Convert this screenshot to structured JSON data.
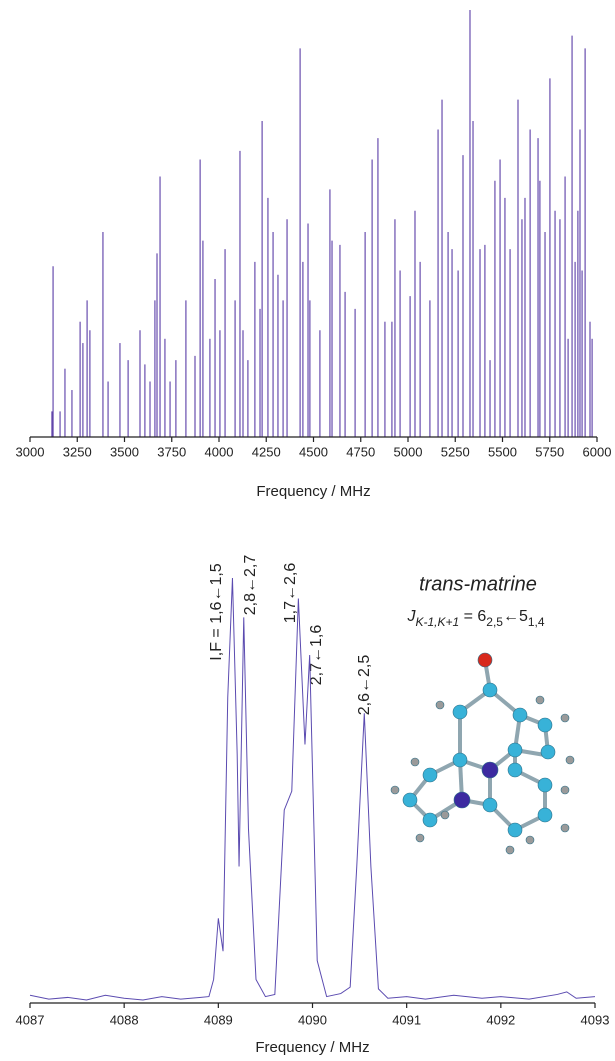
{
  "chart_data": [
    {
      "type": "stem",
      "xlabel": "Frequency / MHz",
      "color": "#4a2a9e",
      "xlim": [
        3000,
        6000
      ],
      "xticks": [
        3000,
        3250,
        3500,
        3750,
        4000,
        4250,
        4500,
        4750,
        5000,
        5250,
        5500,
        5750,
        6000
      ],
      "ylim": [
        0,
        100
      ],
      "x": [
        3116,
        3122,
        3159,
        3185,
        3222,
        3265,
        3280,
        3302,
        3317,
        3386,
        3413,
        3476,
        3519,
        3582,
        3608,
        3635,
        3661,
        3672,
        3688,
        3714,
        3741,
        3772,
        3825,
        3873,
        3900,
        3915,
        3952,
        3979,
        4005,
        4032,
        4085,
        4111,
        4127,
        4153,
        4190,
        4217,
        4228,
        4259,
        4286,
        4312,
        4339,
        4360,
        4429,
        4444,
        4471,
        4481,
        4534,
        4587,
        4598,
        4640,
        4667,
        4720,
        4773,
        4810,
        4841,
        4878,
        4915,
        4931,
        4958,
        5011,
        5037,
        5064,
        5116,
        5159,
        5180,
        5212,
        5233,
        5265,
        5291,
        5328,
        5344,
        5381,
        5407,
        5434,
        5460,
        5487,
        5513,
        5540,
        5582,
        5603,
        5619,
        5646,
        5688,
        5698,
        5725,
        5751,
        5778,
        5804,
        5831,
        5847,
        5868,
        5884,
        5899,
        5910,
        5921,
        5937,
        5963,
        5974
      ],
      "values": [
        6,
        40,
        6,
        16,
        11,
        27,
        22,
        32,
        25,
        48,
        13,
        22,
        18,
        25,
        17,
        13,
        32,
        43,
        61,
        23,
        13,
        18,
        32,
        19,
        65,
        46,
        23,
        37,
        25,
        44,
        32,
        67,
        25,
        18,
        41,
        30,
        74,
        56,
        48,
        38,
        32,
        51,
        91,
        41,
        50,
        32,
        25,
        58,
        46,
        45,
        34,
        30,
        48,
        65,
        70,
        27,
        27,
        51,
        39,
        33,
        53,
        41,
        32,
        72,
        79,
        48,
        44,
        39,
        66,
        100,
        74,
        44,
        45,
        18,
        60,
        65,
        56,
        44,
        79,
        51,
        56,
        72,
        70,
        60,
        48,
        84,
        53,
        51,
        61,
        23,
        94,
        41,
        53,
        72,
        39,
        91,
        27,
        23
      ]
    },
    {
      "type": "line",
      "xlabel": "Frequency / MHz",
      "color": "#5b4bb0",
      "title": "trans-matrine",
      "transition_label": [
        "J",
        "K-1,K+1",
        " = 6",
        "2,5",
        "←5",
        "1,4"
      ],
      "annotations": [
        "I,F = 1,6←1,5",
        "2,8←2,7",
        "1,7←2,6",
        "2,7←1,6",
        "2,6←2,5"
      ],
      "xlim": [
        4087,
        4093
      ],
      "xticks": [
        4087,
        4088,
        4089,
        4090,
        4091,
        4092,
        4093
      ],
      "ylim": [
        0,
        100
      ],
      "x": [
        4087.0,
        4087.2,
        4087.4,
        4087.6,
        4087.8,
        4088.0,
        4088.2,
        4088.4,
        4088.6,
        4088.8,
        4088.9,
        4088.95,
        4089.0,
        4089.05,
        4089.1,
        4089.15,
        4089.2,
        4089.22,
        4089.27,
        4089.32,
        4089.4,
        4089.5,
        4089.6,
        4089.7,
        4089.78,
        4089.85,
        4089.92,
        4089.97,
        4090.05,
        4090.15,
        4090.3,
        4090.4,
        4090.47,
        4090.55,
        4090.62,
        4090.7,
        4090.8,
        4091.0,
        4091.2,
        4091.5,
        4091.8,
        4092.0,
        4092.3,
        4092.6,
        4092.7,
        4092.8,
        4093.0
      ],
      "values": [
        1.8,
        0.9,
        1.3,
        0.7,
        1.8,
        1.1,
        0.7,
        1.5,
        0.9,
        1.3,
        1.5,
        5.5,
        19.8,
        12.1,
        71.4,
        99.3,
        58.2,
        31.9,
        90.1,
        40.7,
        5.5,
        1.5,
        2.0,
        45.1,
        49.5,
        94.5,
        60.4,
        81.3,
        9.9,
        1.5,
        2.2,
        3.7,
        31.9,
        67.7,
        31.9,
        3.3,
        1.1,
        1.5,
        0.9,
        1.8,
        1.1,
        1.5,
        0.9,
        2.0,
        2.6,
        1.1,
        1.5
      ]
    }
  ]
}
